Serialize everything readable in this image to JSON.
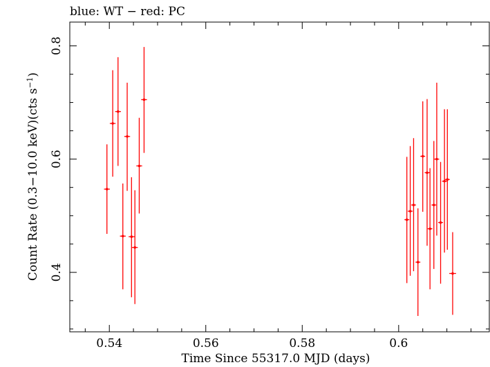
{
  "chart_data": {
    "type": "scatter",
    "title": "blue: WT − red: PC",
    "xlabel": "Time Since 55317.0 MJD (days)",
    "ylabel_main": "Count Rate (0.3−10.0 keV)(cts s",
    "ylabel_sup": "−1",
    "ylabel_close": ")",
    "xlim": [
      0.5318,
      0.6188
    ],
    "ylim": [
      0.295,
      0.842
    ],
    "x_ticks": [
      0.54,
      0.56,
      0.58,
      0.6
    ],
    "x_tick_labels": [
      "0.54",
      "0.56",
      "0.58",
      "0.6"
    ],
    "y_ticks": [
      0.4,
      0.6,
      0.8
    ],
    "y_tick_labels": [
      "0.4",
      "0.6",
      "0.8"
    ],
    "grid": false,
    "series": [
      {
        "color": "#ff0000",
        "points": [
          {
            "x": 0.5395,
            "y": 0.547,
            "xerr": 0.0006,
            "ylo": 0.468,
            "yhi": 0.626
          },
          {
            "x": 0.5407,
            "y": 0.663,
            "xerr": 0.0006,
            "ylo": 0.569,
            "yhi": 0.757
          },
          {
            "x": 0.5418,
            "y": 0.684,
            "xerr": 0.0006,
            "ylo": 0.588,
            "yhi": 0.78
          },
          {
            "x": 0.5428,
            "y": 0.464,
            "xerr": 0.0006,
            "ylo": 0.37,
            "yhi": 0.557
          },
          {
            "x": 0.5437,
            "y": 0.64,
            "xerr": 0.0006,
            "ylo": 0.544,
            "yhi": 0.735
          },
          {
            "x": 0.5446,
            "y": 0.463,
            "xerr": 0.0006,
            "ylo": 0.356,
            "yhi": 0.568
          },
          {
            "x": 0.5453,
            "y": 0.444,
            "xerr": 0.0006,
            "ylo": 0.344,
            "yhi": 0.545
          },
          {
            "x": 0.5462,
            "y": 0.588,
            "xerr": 0.0006,
            "ylo": 0.504,
            "yhi": 0.673
          },
          {
            "x": 0.5472,
            "y": 0.705,
            "xerr": 0.0006,
            "ylo": 0.611,
            "yhi": 0.798
          },
          {
            "x": 0.6017,
            "y": 0.493,
            "xerr": 0.0005,
            "ylo": 0.381,
            "yhi": 0.604
          },
          {
            "x": 0.6024,
            "y": 0.508,
            "xerr": 0.0005,
            "ylo": 0.394,
            "yhi": 0.623
          },
          {
            "x": 0.6031,
            "y": 0.519,
            "xerr": 0.0005,
            "ylo": 0.402,
            "yhi": 0.637
          },
          {
            "x": 0.604,
            "y": 0.418,
            "xerr": 0.0005,
            "ylo": 0.323,
            "yhi": 0.513
          },
          {
            "x": 0.605,
            "y": 0.605,
            "xerr": 0.0005,
            "ylo": 0.507,
            "yhi": 0.702
          },
          {
            "x": 0.6059,
            "y": 0.576,
            "xerr": 0.0005,
            "ylo": 0.447,
            "yhi": 0.706
          },
          {
            "x": 0.6065,
            "y": 0.477,
            "xerr": 0.0005,
            "ylo": 0.37,
            "yhi": 0.584
          },
          {
            "x": 0.6073,
            "y": 0.519,
            "xerr": 0.0005,
            "ylo": 0.406,
            "yhi": 0.632
          },
          {
            "x": 0.6079,
            "y": 0.6,
            "xerr": 0.0005,
            "ylo": 0.465,
            "yhi": 0.735
          },
          {
            "x": 0.6087,
            "y": 0.488,
            "xerr": 0.0005,
            "ylo": 0.38,
            "yhi": 0.595
          },
          {
            "x": 0.6095,
            "y": 0.561,
            "xerr": 0.0005,
            "ylo": 0.435,
            "yhi": 0.688
          },
          {
            "x": 0.6101,
            "y": 0.564,
            "xerr": 0.0005,
            "ylo": 0.44,
            "yhi": 0.688
          },
          {
            "x": 0.6112,
            "y": 0.398,
            "xerr": 0.0007,
            "ylo": 0.325,
            "yhi": 0.471
          }
        ]
      }
    ]
  }
}
